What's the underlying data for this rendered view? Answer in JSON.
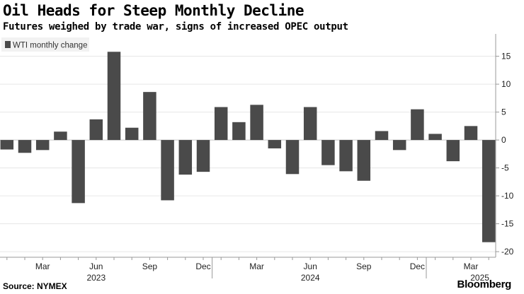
{
  "header": {
    "title": "Oil Heads for Steep Monthly Decline",
    "subtitle": "Futures weighed by trade war, signs of increased OPEC output"
  },
  "footer": {
    "source": "Source: NYMEX",
    "brand": "Bloomberg"
  },
  "colors": {
    "bar": "#4a4a4a",
    "grid": "#e6e6e6",
    "axis": "#999999"
  },
  "chart_data": {
    "type": "bar",
    "legend": {
      "label": "WTI monthly change",
      "placement": "top-left"
    },
    "categories": [
      "2023-01",
      "2023-02",
      "2023-03",
      "2023-04",
      "2023-05",
      "2023-06",
      "2023-07",
      "2023-08",
      "2023-09",
      "2023-10",
      "2023-11",
      "2023-12",
      "2024-01",
      "2024-02",
      "2024-03",
      "2024-04",
      "2024-05",
      "2024-06",
      "2024-07",
      "2024-08",
      "2024-09",
      "2024-10",
      "2024-11",
      "2024-12",
      "2025-01",
      "2025-02",
      "2025-03",
      "2025-04"
    ],
    "values": [
      -1.7,
      -2.3,
      -1.8,
      1.5,
      -11.3,
      3.7,
      15.8,
      2.2,
      8.6,
      -10.8,
      -6.2,
      -5.7,
      5.9,
      3.2,
      6.3,
      -1.5,
      -6.1,
      5.9,
      -4.5,
      -5.6,
      -7.3,
      1.6,
      -1.8,
      5.5,
      1.1,
      -3.8,
      2.5,
      -18.3
    ],
    "x_tick_labels": [
      {
        "index": 2,
        "label": "Mar"
      },
      {
        "index": 5,
        "label": "Jun"
      },
      {
        "index": 8,
        "label": "Sep"
      },
      {
        "index": 11,
        "label": "Dec"
      },
      {
        "index": 14,
        "label": "Mar"
      },
      {
        "index": 17,
        "label": "Jun"
      },
      {
        "index": 20,
        "label": "Sep"
      },
      {
        "index": 23,
        "label": "Dec"
      },
      {
        "index": 26,
        "label": "Mar"
      }
    ],
    "year_labels": [
      {
        "index": 5,
        "label": "2023"
      },
      {
        "index": 17,
        "label": "2024"
      },
      {
        "index": 26.5,
        "label": "2025"
      }
    ],
    "year_boundaries": [
      11.5,
      23.5
    ],
    "y_ticks": [
      15,
      10,
      5,
      0,
      -5,
      -10,
      -15,
      -20
    ],
    "y_tick_labels": [
      "15",
      "10",
      "5",
      "0",
      "-5",
      "-10",
      "-15",
      "-20"
    ],
    "ylim": [
      -21,
      19
    ],
    "y_axis_side": "right",
    "grid": "horizontal"
  }
}
